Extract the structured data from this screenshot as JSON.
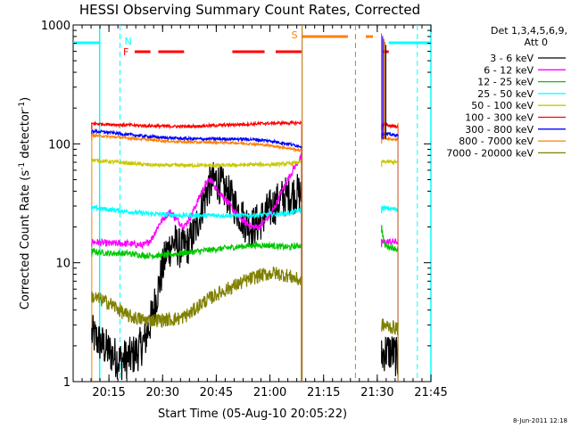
{
  "chart_data": {
    "type": "line",
    "title": "HESSI Observing Summary Count Rates, Corrected",
    "xlabel": "Start Time (05-Aug-10 20:05:22)",
    "ylabel": "Corrected Count Rate (s⁻¹ detector⁻¹)",
    "ylabel_parts": {
      "main": "Corrected Count Rate (s",
      "exp1": "-1",
      "mid": " detector",
      "exp2": "-1",
      "end": ")"
    },
    "xlim": [
      0,
      100
    ],
    "ylim": [
      1,
      1000
    ],
    "yscale": "log",
    "x_ticks": [
      {
        "value": 10,
        "label": "20:15"
      },
      {
        "value": 25,
        "label": "20:30"
      },
      {
        "value": 40,
        "label": "20:45"
      },
      {
        "value": 55,
        "label": "21:00"
      },
      {
        "value": 70,
        "label": "21:15"
      },
      {
        "value": 85,
        "label": "21:30"
      },
      {
        "value": 100,
        "label": "21:45"
      }
    ],
    "y_ticks": [
      {
        "value": 1,
        "label": "1"
      },
      {
        "value": 10,
        "label": "10"
      },
      {
        "value": 100,
        "label": "100"
      },
      {
        "value": 1000,
        "label": "1000"
      }
    ],
    "legend": {
      "placement": "right",
      "header": [
        "Det 1,3,4,5,6,9,",
        "Att 0"
      ]
    },
    "series": [
      {
        "name": "3 - 6 keV",
        "color": "#000000",
        "noise": 0.35,
        "segments": [
          [
            [
              5.2,
              2.5
            ],
            [
              7,
              2.2
            ],
            [
              10,
              1.8
            ],
            [
              13,
              1.5
            ],
            [
              16,
              1.6
            ],
            [
              18,
              1.8
            ],
            [
              20,
              2.2
            ],
            [
              22,
              3.5
            ],
            [
              24,
              6.5
            ],
            [
              26,
              12
            ],
            [
              28,
              15
            ],
            [
              30,
              13
            ],
            [
              32,
              14
            ],
            [
              34,
              18
            ],
            [
              36,
              30
            ],
            [
              38,
              45
            ],
            [
              40,
              50
            ],
            [
              42,
              42
            ],
            [
              44,
              35
            ],
            [
              46,
              28
            ],
            [
              48,
              22
            ],
            [
              50,
              20
            ],
            [
              52,
              22
            ],
            [
              54,
              26
            ],
            [
              56,
              30
            ],
            [
              58,
              34
            ],
            [
              60,
              37
            ],
            [
              62,
              38
            ],
            [
              63.8,
              38
            ]
          ],
          [
            [
              86.2,
              1.6
            ],
            [
              87,
              1.8
            ],
            [
              88.5,
              1.8
            ],
            [
              89.8,
              1.7
            ],
            [
              90.8,
              1.5
            ]
          ]
        ]
      },
      {
        "name": "6 - 12 keV",
        "color": "#ff00ff",
        "noise": 0.06,
        "segments": [
          [
            [
              5.2,
              15
            ],
            [
              10,
              14.5
            ],
            [
              15,
              14.5
            ],
            [
              20,
              14
            ],
            [
              22,
              16
            ],
            [
              24,
              21
            ],
            [
              25.5,
              24
            ],
            [
              27,
              27
            ],
            [
              29,
              23
            ],
            [
              31,
              20
            ],
            [
              33,
              25
            ],
            [
              35,
              34
            ],
            [
              37,
              46
            ],
            [
              38.5,
              50
            ],
            [
              40,
              42
            ],
            [
              42,
              36
            ],
            [
              44,
              30
            ],
            [
              46,
              25
            ],
            [
              48,
              22
            ],
            [
              50,
              20
            ],
            [
              52,
              20
            ],
            [
              54,
              23
            ],
            [
              56,
              28
            ],
            [
              58,
              38
            ],
            [
              60,
              50
            ],
            [
              62,
              65
            ],
            [
              63.8,
              78
            ]
          ],
          [
            [
              86.2,
              15
            ],
            [
              90.8,
              15
            ]
          ]
        ]
      },
      {
        "name": "12 - 25 keV",
        "color": "#00c800",
        "noise": 0.05,
        "segments": [
          [
            [
              5.2,
              12.5
            ],
            [
              10,
              12
            ],
            [
              15,
              12
            ],
            [
              20,
              11.5
            ],
            [
              25,
              11.5
            ],
            [
              30,
              12
            ],
            [
              35,
              12.5
            ],
            [
              40,
              13
            ],
            [
              45,
              13.5
            ],
            [
              50,
              14
            ],
            [
              55,
              14
            ],
            [
              60,
              13.5
            ],
            [
              63.8,
              14
            ]
          ],
          [
            [
              86.2,
              20
            ],
            [
              87,
              14
            ],
            [
              90.8,
              13
            ]
          ]
        ]
      },
      {
        "name": "25 - 50 keV",
        "color": "#00ffff",
        "noise": 0.04,
        "segments": [
          [
            [
              5.2,
              29
            ],
            [
              10,
              28
            ],
            [
              15,
              27
            ],
            [
              20,
              26
            ],
            [
              25,
              25.5
            ],
            [
              30,
              25
            ],
            [
              35,
              25
            ],
            [
              40,
              25
            ],
            [
              45,
              25
            ],
            [
              50,
              25
            ],
            [
              55,
              25.5
            ],
            [
              60,
              26
            ],
            [
              63.8,
              28
            ]
          ],
          [
            [
              86.2,
              29
            ],
            [
              90.8,
              28
            ]
          ]
        ]
      },
      {
        "name": "50 - 100 keV",
        "color": "#c8c800",
        "noise": 0.03,
        "segments": [
          [
            [
              5.2,
              73
            ],
            [
              10,
              71
            ],
            [
              15,
              69
            ],
            [
              20,
              67
            ],
            [
              25,
              66
            ],
            [
              30,
              66
            ],
            [
              35,
              66
            ],
            [
              40,
              66
            ],
            [
              45,
              66
            ],
            [
              50,
              67
            ],
            [
              55,
              67
            ],
            [
              60,
              68
            ],
            [
              63.8,
              70
            ]
          ],
          [
            [
              86.2,
              71
            ],
            [
              90.8,
              70
            ]
          ]
        ]
      },
      {
        "name": "100 - 300 keV",
        "color": "#ff0000",
        "noise": 0.025,
        "segments": [
          [
            [
              5.2,
              148
            ],
            [
              10,
              146
            ],
            [
              15,
              144
            ],
            [
              20,
              142
            ],
            [
              25,
              141
            ],
            [
              30,
              140
            ],
            [
              35,
              141
            ],
            [
              40,
              143
            ],
            [
              45,
              145
            ],
            [
              50,
              147
            ],
            [
              55,
              149
            ],
            [
              60,
              150
            ],
            [
              63.8,
              150
            ]
          ],
          [
            [
              86.2,
              145
            ],
            [
              90.8,
              140
            ]
          ]
        ]
      },
      {
        "name": "300 - 800 keV",
        "color": "#0000ff",
        "noise": 0.025,
        "segments": [
          [
            [
              5.2,
              128
            ],
            [
              10,
              125
            ],
            [
              15,
              120
            ],
            [
              20,
              116
            ],
            [
              25,
              113
            ],
            [
              30,
              111
            ],
            [
              35,
              110
            ],
            [
              40,
              110
            ],
            [
              45,
              110
            ],
            [
              50,
              109
            ],
            [
              55,
              106
            ],
            [
              60,
              100
            ],
            [
              63.8,
              95
            ]
          ],
          [
            [
              86.2,
              122
            ],
            [
              90.8,
              118
            ]
          ]
        ]
      },
      {
        "name": "800 - 7000 keV",
        "color": "#ff8000",
        "noise": 0.02,
        "segments": [
          [
            [
              5.2,
              118
            ],
            [
              10,
              115
            ],
            [
              15,
              112
            ],
            [
              20,
              109
            ],
            [
              25,
              106
            ],
            [
              30,
              104
            ],
            [
              35,
              103
            ],
            [
              40,
              103
            ],
            [
              45,
              102
            ],
            [
              50,
              100
            ],
            [
              55,
              97
            ],
            [
              60,
              92
            ],
            [
              63.8,
              88
            ]
          ],
          [
            [
              86.2,
              112
            ],
            [
              90.8,
              108
            ]
          ]
        ]
      },
      {
        "name": "7000 - 20000 keV",
        "color": "#808000",
        "noise": 0.12,
        "segments": [
          [
            [
              5.2,
              5.2
            ],
            [
              10,
              4.6
            ],
            [
              13,
              4.0
            ],
            [
              15,
              3.6
            ],
            [
              18,
              3.4
            ],
            [
              20,
              3.3
            ],
            [
              25,
              3.3
            ],
            [
              30,
              3.4
            ],
            [
              33,
              3.8
            ],
            [
              36,
              4.6
            ],
            [
              40,
              5.4
            ],
            [
              44,
              6.2
            ],
            [
              48,
              7.0
            ],
            [
              52,
              7.8
            ],
            [
              56,
              8.2
            ],
            [
              60,
              7.8
            ],
            [
              63.8,
              7.0
            ]
          ],
          [
            [
              86.2,
              3.0
            ],
            [
              90.8,
              2.8
            ]
          ]
        ]
      }
    ],
    "annotations": {
      "night_label": "N",
      "flare_label": "F",
      "saa_label": "S",
      "night_bars": [
        [
          0,
          7.4
        ],
        [
          88.2,
          100
        ]
      ],
      "night_edges": [
        7.4,
        100
      ],
      "night_dashed": [
        13.1,
        96.2
      ],
      "flare_bars": [
        [
          17.2,
          21.6
        ],
        [
          23.8,
          31.0
        ],
        [
          44.5,
          53.5
        ],
        [
          56.6,
          63.8
        ],
        [
          86.5,
          88.2
        ]
      ],
      "saa_bars": [
        [
          64.0,
          76.8
        ],
        [
          81.8,
          83.8
        ]
      ],
      "saa_edges": [
        64.0
      ],
      "saa_dashed": [
        78.9
      ],
      "data_gap_lines": [
        5.2,
        90.8
      ],
      "attenuator_spike": {
        "x": 86.2,
        "ymin": 110,
        "ymax": 850
      }
    }
  },
  "footer": {
    "timestamp": "8-Jun-2011 12:18"
  }
}
